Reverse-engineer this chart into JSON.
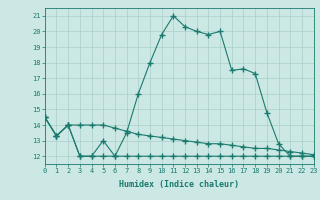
{
  "xlabel": "Humidex (Indice chaleur)",
  "x": [
    0,
    1,
    2,
    3,
    4,
    5,
    6,
    7,
    8,
    9,
    10,
    11,
    12,
    13,
    14,
    15,
    16,
    17,
    18,
    19,
    20,
    21,
    22,
    23
  ],
  "line1": [
    14.5,
    13.3,
    14.0,
    12.0,
    12.0,
    13.0,
    12.0,
    13.5,
    16.0,
    18.0,
    19.8,
    21.0,
    20.3,
    20.0,
    19.8,
    20.0,
    17.5,
    17.6,
    17.3,
    14.8,
    12.8,
    12.0,
    12.0,
    12.0
  ],
  "line2": [
    14.5,
    13.3,
    14.0,
    12.0,
    12.0,
    12.0,
    12.0,
    12.0,
    12.0,
    12.0,
    12.0,
    12.0,
    12.0,
    12.0,
    12.0,
    12.0,
    12.0,
    12.0,
    12.0,
    12.0,
    12.0,
    12.0,
    12.0,
    12.0
  ],
  "line3": [
    14.5,
    13.3,
    14.0,
    14.0,
    14.0,
    14.0,
    13.8,
    13.6,
    13.4,
    13.3,
    13.2,
    13.1,
    13.0,
    12.9,
    12.8,
    12.8,
    12.7,
    12.6,
    12.5,
    12.5,
    12.4,
    12.3,
    12.2,
    12.1
  ],
  "xlim": [
    0,
    23
  ],
  "ylim": [
    11.5,
    21.5
  ],
  "yticks": [
    12,
    13,
    14,
    15,
    16,
    17,
    18,
    19,
    20,
    21
  ],
  "xticks": [
    0,
    1,
    2,
    3,
    4,
    5,
    6,
    7,
    8,
    9,
    10,
    11,
    12,
    13,
    14,
    15,
    16,
    17,
    18,
    19,
    20,
    21,
    22,
    23
  ],
  "line_color": "#1a7a6e",
  "bg_color": "#cce8e5",
  "grid_color": "#aacfcc",
  "fig_bg": "#cce8e5"
}
